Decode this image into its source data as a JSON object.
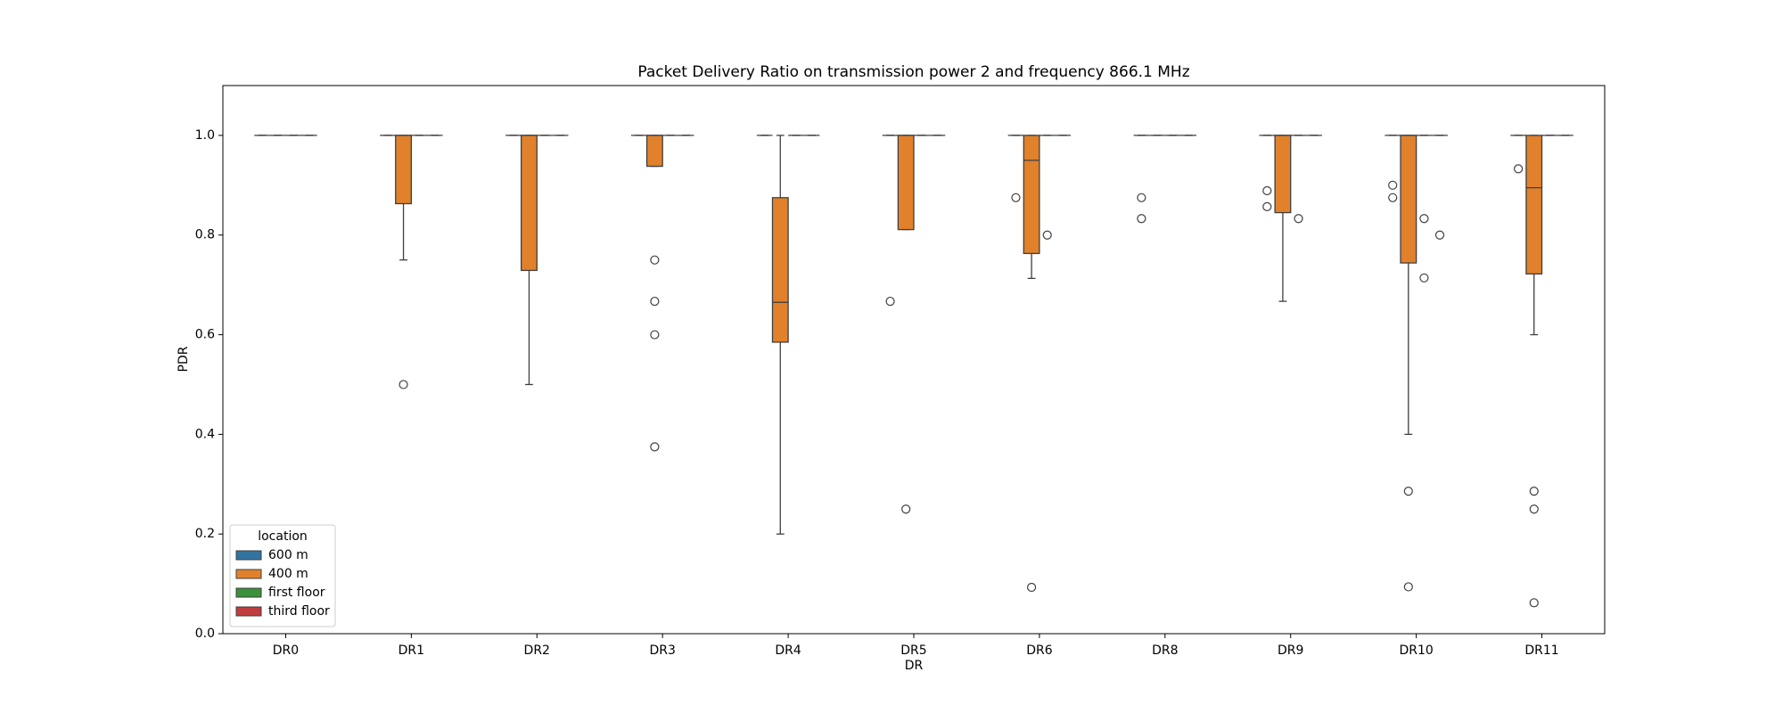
{
  "chart_data": {
    "type": "box",
    "title": "Packet Delivery Ratio on transmission power 2 and frequency 866.1 MHz",
    "x_label": "DR",
    "y_label": "PDR",
    "categories": [
      "DR0",
      "DR1",
      "DR2",
      "DR3",
      "DR4",
      "DR5",
      "DR6",
      "DR8",
      "DR9",
      "DR10",
      "DR11"
    ],
    "ylim": [
      0,
      1.1
    ],
    "yticks": [
      {
        "value": 0,
        "label": "0.0"
      },
      0.2,
      0.4,
      0.6,
      0.8,
      {
        "value": 1,
        "label": "1.0"
      }
    ],
    "legend_title": "location",
    "legend": "lower left",
    "series": [
      {
        "name": "600 m",
        "color": "#3274a1",
        "boxes": [
          {
            "whislo": 1,
            "q1": 1,
            "med": 1,
            "q3": 1,
            "whishi": 1,
            "fliers": []
          },
          {
            "whislo": 1,
            "q1": 1,
            "med": 1,
            "q3": 1,
            "whishi": 1,
            "fliers": []
          },
          {
            "whislo": 1,
            "q1": 1,
            "med": 1,
            "q3": 1,
            "whishi": 1,
            "fliers": []
          },
          {
            "whislo": 1,
            "q1": 1,
            "med": 1,
            "q3": 1,
            "whishi": 1,
            "fliers": []
          },
          {
            "whislo": 1,
            "q1": 1,
            "med": 1,
            "q3": 1,
            "whishi": 1,
            "fliers": []
          },
          {
            "whislo": 1,
            "q1": 1,
            "med": 1,
            "q3": 1,
            "whishi": 1,
            "fliers": [
              0.667
            ]
          },
          {
            "whislo": 1,
            "q1": 1,
            "med": 1,
            "q3": 1,
            "whishi": 1,
            "fliers": [
              0.875
            ]
          },
          {
            "whislo": 1,
            "q1": 1,
            "med": 1,
            "q3": 1,
            "whishi": 1,
            "fliers": [
              0.875,
              0.833
            ]
          },
          {
            "whislo": 1,
            "q1": 1,
            "med": 1,
            "q3": 1,
            "whishi": 1,
            "fliers": [
              0.889,
              0.857
            ]
          },
          {
            "whislo": 1,
            "q1": 1,
            "med": 1,
            "q3": 1,
            "whishi": 1,
            "fliers": [
              0.9,
              0.875
            ]
          },
          {
            "whislo": 1,
            "q1": 1,
            "med": 1,
            "q3": 1,
            "whishi": 1,
            "fliers": [
              0.933
            ]
          }
        ]
      },
      {
        "name": "400 m",
        "color": "#e1812c",
        "boxes": [
          {
            "whislo": 1,
            "q1": 1,
            "med": 1,
            "q3": 1,
            "whishi": 1,
            "fliers": []
          },
          {
            "whislo": 0.75,
            "q1": 0.863,
            "med": 1,
            "q3": 1,
            "whishi": 1,
            "fliers": [
              0.5
            ]
          },
          {
            "whislo": 0.5,
            "q1": 0.729,
            "med": 1,
            "q3": 1,
            "whishi": 1,
            "fliers": []
          },
          {
            "whislo": 0.938,
            "q1": 0.938,
            "med": 1,
            "q3": 1,
            "whishi": 1,
            "fliers": [
              0.75,
              0.667,
              0.6,
              0.375
            ]
          },
          {
            "whislo": 0.2,
            "q1": 0.585,
            "med": 0.665,
            "q3": 0.875,
            "whishi": 1,
            "fliers": []
          },
          {
            "whislo": 0.811,
            "q1": 0.811,
            "med": 1,
            "q3": 1,
            "whishi": 1,
            "fliers": [
              0.25
            ]
          },
          {
            "whislo": 0.713,
            "q1": 0.763,
            "med": 0.95,
            "q3": 1,
            "whishi": 1,
            "fliers": [
              0.093
            ]
          },
          {
            "whislo": 1,
            "q1": 1,
            "med": 1,
            "q3": 1,
            "whishi": 1,
            "fliers": []
          },
          {
            "whislo": 0.667,
            "q1": 0.845,
            "med": 1,
            "q3": 1,
            "whishi": 1,
            "fliers": []
          },
          {
            "whislo": 0.4,
            "q1": 0.744,
            "med": 1,
            "q3": 1,
            "whishi": 1,
            "fliers": [
              0.286,
              0.094
            ]
          },
          {
            "whislo": 0.6,
            "q1": 0.722,
            "med": 0.895,
            "q3": 1,
            "whishi": 1,
            "fliers": [
              0.286,
              0.25,
              0.062
            ]
          }
        ]
      },
      {
        "name": "first floor",
        "color": "#3a923a",
        "boxes": [
          {
            "whislo": 1,
            "q1": 1,
            "med": 1,
            "q3": 1,
            "whishi": 1,
            "fliers": []
          },
          {
            "whislo": 1,
            "q1": 1,
            "med": 1,
            "q3": 1,
            "whishi": 1,
            "fliers": []
          },
          {
            "whislo": 1,
            "q1": 1,
            "med": 1,
            "q3": 1,
            "whishi": 1,
            "fliers": []
          },
          {
            "whislo": 1,
            "q1": 1,
            "med": 1,
            "q3": 1,
            "whishi": 1,
            "fliers": []
          },
          {
            "whislo": 1,
            "q1": 1,
            "med": 1,
            "q3": 1,
            "whishi": 1,
            "fliers": []
          },
          {
            "whislo": 1,
            "q1": 1,
            "med": 1,
            "q3": 1,
            "whishi": 1,
            "fliers": []
          },
          {
            "whislo": 1,
            "q1": 1,
            "med": 1,
            "q3": 1,
            "whishi": 1,
            "fliers": [
              0.8
            ]
          },
          {
            "whislo": 1,
            "q1": 1,
            "med": 1,
            "q3": 1,
            "whishi": 1,
            "fliers": []
          },
          {
            "whislo": 1,
            "q1": 1,
            "med": 1,
            "q3": 1,
            "whishi": 1,
            "fliers": [
              0.833
            ]
          },
          {
            "whislo": 1,
            "q1": 1,
            "med": 1,
            "q3": 1,
            "whishi": 1,
            "fliers": [
              0.833,
              0.714
            ]
          },
          {
            "whislo": 1,
            "q1": 1,
            "med": 1,
            "q3": 1,
            "whishi": 1,
            "fliers": []
          }
        ]
      },
      {
        "name": "third floor",
        "color": "#c03d3e",
        "boxes": [
          {
            "whislo": 1,
            "q1": 1,
            "med": 1,
            "q3": 1,
            "whishi": 1,
            "fliers": []
          },
          {
            "whislo": 1,
            "q1": 1,
            "med": 1,
            "q3": 1,
            "whishi": 1,
            "fliers": []
          },
          {
            "whislo": 1,
            "q1": 1,
            "med": 1,
            "q3": 1,
            "whishi": 1,
            "fliers": []
          },
          {
            "whislo": 1,
            "q1": 1,
            "med": 1,
            "q3": 1,
            "whishi": 1,
            "fliers": []
          },
          {
            "whislo": 1,
            "q1": 1,
            "med": 1,
            "q3": 1,
            "whishi": 1,
            "fliers": []
          },
          {
            "whislo": 1,
            "q1": 1,
            "med": 1,
            "q3": 1,
            "whishi": 1,
            "fliers": []
          },
          {
            "whislo": 1,
            "q1": 1,
            "med": 1,
            "q3": 1,
            "whishi": 1,
            "fliers": []
          },
          {
            "whislo": 1,
            "q1": 1,
            "med": 1,
            "q3": 1,
            "whishi": 1,
            "fliers": []
          },
          {
            "whislo": 1,
            "q1": 1,
            "med": 1,
            "q3": 1,
            "whishi": 1,
            "fliers": []
          },
          {
            "whislo": 1,
            "q1": 1,
            "med": 1,
            "q3": 1,
            "whishi": 1,
            "fliers": [
              0.8
            ]
          },
          {
            "whislo": 1,
            "q1": 1,
            "med": 1,
            "q3": 1,
            "whishi": 1,
            "fliers": []
          }
        ]
      }
    ]
  }
}
